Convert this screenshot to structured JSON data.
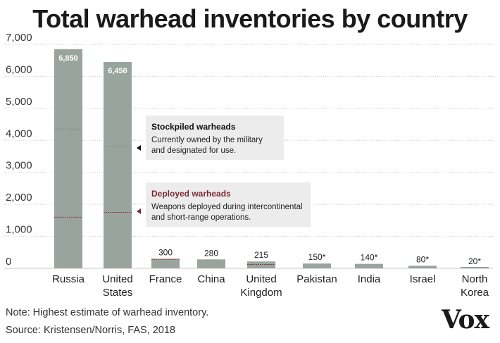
{
  "chart_data": {
    "type": "bar",
    "title": "Total warhead inventories by country",
    "categories": [
      "Russia",
      "United States",
      "France",
      "China",
      "United Kingdom",
      "Pakistan",
      "India",
      "Israel",
      "North Korea"
    ],
    "category_lines": [
      [
        "Russia"
      ],
      [
        "United",
        "States"
      ],
      [
        "France"
      ],
      [
        "China"
      ],
      [
        "United",
        "Kingdom"
      ],
      [
        "Pakistan"
      ],
      [
        "India"
      ],
      [
        "Israel"
      ],
      [
        "North",
        "Korea"
      ]
    ],
    "series": [
      {
        "name": "Total inventory",
        "values": [
          6850,
          6450,
          300,
          280,
          215,
          150,
          140,
          80,
          20
        ]
      },
      {
        "name": "Stockpiled warheads",
        "values": [
          4350,
          3800,
          300,
          280,
          215,
          150,
          140,
          80,
          20
        ]
      },
      {
        "name": "Deployed warheads",
        "values": [
          1600,
          1750,
          280,
          null,
          120,
          null,
          null,
          null,
          null
        ]
      }
    ],
    "data_labels": [
      "6,850",
      "6,450",
      "300",
      "280",
      "215",
      "150*",
      "140*",
      "80*",
      "20*"
    ],
    "yticks": [
      "0",
      "1,000",
      "2,000",
      "3,000",
      "4,000",
      "5,000",
      "6,000",
      "7,000"
    ],
    "ylim": [
      0,
      7000
    ],
    "xlabel": "",
    "ylabel": ""
  },
  "annotations": {
    "stockpiled": {
      "heading": "Stockpiled warheads",
      "line1": "Currently owned by the military",
      "line2": "and designated for use."
    },
    "deployed": {
      "heading": "Deployed warheads",
      "line1": "Weapons deployed during intercontinental",
      "line2": "and short-range operations."
    }
  },
  "footer": {
    "note": "Note: Highest estimate of warhead inventory.",
    "source": "Source: Kristensen/Norris, FAS, 2018",
    "logo": "Vox"
  },
  "colors": {
    "bar": "#9aa49e",
    "stockpile_line": "#8b918d",
    "deployed_line": "#8b3a44",
    "grid": "#c9c9c9",
    "annotation_bg": "#ececec"
  }
}
